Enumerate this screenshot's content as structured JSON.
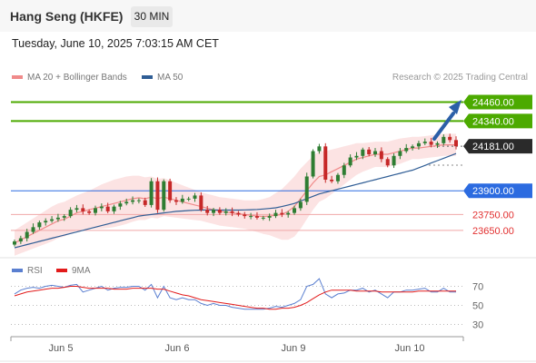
{
  "header": {
    "symbol": "Hang Seng (HKFE)",
    "timeframe": "30 MIN",
    "datetime": "Tuesday, June 10, 2025 7:03:15 AM CET"
  },
  "legend": {
    "ma20": {
      "label": "MA 20 + Bollinger Bands",
      "color": "#f08a8a"
    },
    "ma50": {
      "label": "MA 50",
      "color": "#2f5d95"
    },
    "source": "Research © 2025 Trading Central"
  },
  "rsi_legend": {
    "rsi": {
      "label": "RSI",
      "color": "#5a7fd0"
    },
    "ma9": {
      "label": "9MA",
      "color": "#e21b1b"
    }
  },
  "chart_data": {
    "type": "candlestick",
    "price_range": [
      23500,
      24560
    ],
    "x_labels": [
      "Jun 5",
      "Jun 6",
      "Jun 9",
      "Jun 10"
    ],
    "levels": [
      {
        "value": 24460,
        "label": "24460.00",
        "kind": "resistance",
        "color": "#4caa00"
      },
      {
        "value": 24340,
        "label": "24340.00",
        "kind": "resistance",
        "color": "#4caa00"
      },
      {
        "value": 24181,
        "label": "24181.00",
        "kind": "last",
        "color": "#2a2a2a"
      },
      {
        "value": 23900,
        "label": "23900.00",
        "kind": "pivot",
        "color": "#2c6be0"
      },
      {
        "value": 23750,
        "label": "23750.00",
        "kind": "support",
        "color": "#e23030"
      },
      {
        "value": 23650,
        "label": "23650.00",
        "kind": "support",
        "color": "#e23030"
      }
    ],
    "closes": [
      23580,
      23600,
      23640,
      23670,
      23700,
      23710,
      23720,
      23730,
      23740,
      23780,
      23790,
      23770,
      23760,
      23790,
      23800,
      23770,
      23800,
      23820,
      23830,
      23840,
      23840,
      23810,
      23960,
      23780,
      23960,
      23840,
      23830,
      23850,
      23850,
      23870,
      23780,
      23760,
      23780,
      23760,
      23770,
      23760,
      23750,
      23740,
      23740,
      23730,
      23730,
      23740,
      23760,
      23750,
      23760,
      23790,
      23830,
      23990,
      24150,
      24180,
      23970,
      23960,
      24000,
      24060,
      24110,
      24120,
      24160,
      24130,
      24150,
      24100,
      24060,
      24120,
      24150,
      24170,
      24180,
      24200,
      24210,
      24190,
      24200,
      24240,
      24220,
      24181
    ],
    "ma20": [
      23570,
      23590,
      23610,
      23630,
      23650,
      23670,
      23690,
      23710,
      23720,
      23740,
      23760,
      23770,
      23780,
      23790,
      23800,
      23810,
      23820,
      23830,
      23840,
      23850,
      23855,
      23850,
      23860,
      23850,
      23860,
      23850,
      23840,
      23830,
      23820,
      23810,
      23800,
      23790,
      23780,
      23770,
      23765,
      23760,
      23755,
      23750,
      23745,
      23740,
      23738,
      23740,
      23745,
      23750,
      23770,
      23800,
      23850,
      23900,
      23950,
      23990,
      24000,
      24020,
      24040,
      24060,
      24080,
      24100,
      24110,
      24120,
      24130,
      24130,
      24130,
      24140,
      24150,
      24160,
      24170,
      24170,
      24175,
      24180,
      24185,
      24190,
      24190,
      24190
    ],
    "ma50": [
      23540,
      23550,
      23560,
      23570,
      23580,
      23590,
      23600,
      23610,
      23620,
      23630,
      23640,
      23650,
      23660,
      23670,
      23680,
      23690,
      23700,
      23710,
      23720,
      23730,
      23740,
      23745,
      23750,
      23755,
      23760,
      23765,
      23770,
      23772,
      23775,
      23777,
      23778,
      23779,
      23779,
      23778,
      23778,
      23778,
      23778,
      23779,
      23780,
      23782,
      23785,
      23788,
      23792,
      23800,
      23810,
      23820,
      23835,
      23850,
      23865,
      23880,
      23890,
      23900,
      23910,
      23920,
      23930,
      23940,
      23950,
      23960,
      23970,
      23980,
      23990,
      24000,
      24010,
      24020,
      24030,
      24045,
      24060,
      24075,
      24090,
      24105,
      24120,
      24135
    ],
    "bb_width": [
      80,
      85,
      90,
      95,
      100,
      105,
      110,
      110,
      110,
      110,
      110,
      115,
      120,
      130,
      140,
      145,
      150,
      150,
      150,
      145,
      140,
      135,
      130,
      125,
      120,
      115,
      110,
      105,
      100,
      95,
      90,
      90,
      90,
      90,
      90,
      90,
      90,
      90,
      95,
      100,
      110,
      120,
      140,
      160,
      180,
      190,
      190,
      180,
      170,
      160,
      150,
      140,
      130,
      120,
      110,
      100,
      90,
      85,
      80,
      80,
      80,
      80,
      80,
      75,
      70,
      70,
      70,
      70,
      70,
      70,
      70,
      70
    ],
    "rsi_range": [
      20,
      80
    ],
    "rsi_ticks": [
      70,
      50,
      30
    ],
    "rsi": [
      62,
      66,
      68,
      69,
      68,
      70,
      71,
      70,
      69,
      71,
      72,
      64,
      66,
      68,
      70,
      66,
      68,
      69,
      69,
      70,
      70,
      66,
      72,
      58,
      70,
      58,
      56,
      58,
      56,
      56,
      52,
      50,
      52,
      50,
      50,
      48,
      47,
      46,
      46,
      46,
      46,
      47,
      49,
      48,
      50,
      52,
      56,
      70,
      72,
      78,
      62,
      58,
      62,
      63,
      66,
      66,
      68,
      64,
      66,
      62,
      58,
      64,
      64,
      66,
      66,
      67,
      68,
      64,
      64,
      68,
      64,
      64
    ],
    "rsi_ma9": [
      60,
      62,
      64,
      65,
      66,
      67,
      68,
      68,
      69,
      70,
      70,
      69,
      68,
      68,
      68,
      68,
      67,
      67,
      67,
      68,
      68,
      68,
      68,
      67,
      67,
      65,
      63,
      61,
      60,
      58,
      56,
      55,
      54,
      53,
      52,
      51,
      50,
      49,
      48,
      47,
      47,
      46,
      46,
      47,
      47,
      48,
      50,
      53,
      57,
      61,
      64,
      66,
      66,
      66,
      66,
      65,
      65,
      65,
      65,
      64,
      64,
      64,
      64,
      64,
      64,
      65,
      65,
      65,
      65,
      65,
      65,
      65
    ]
  }
}
